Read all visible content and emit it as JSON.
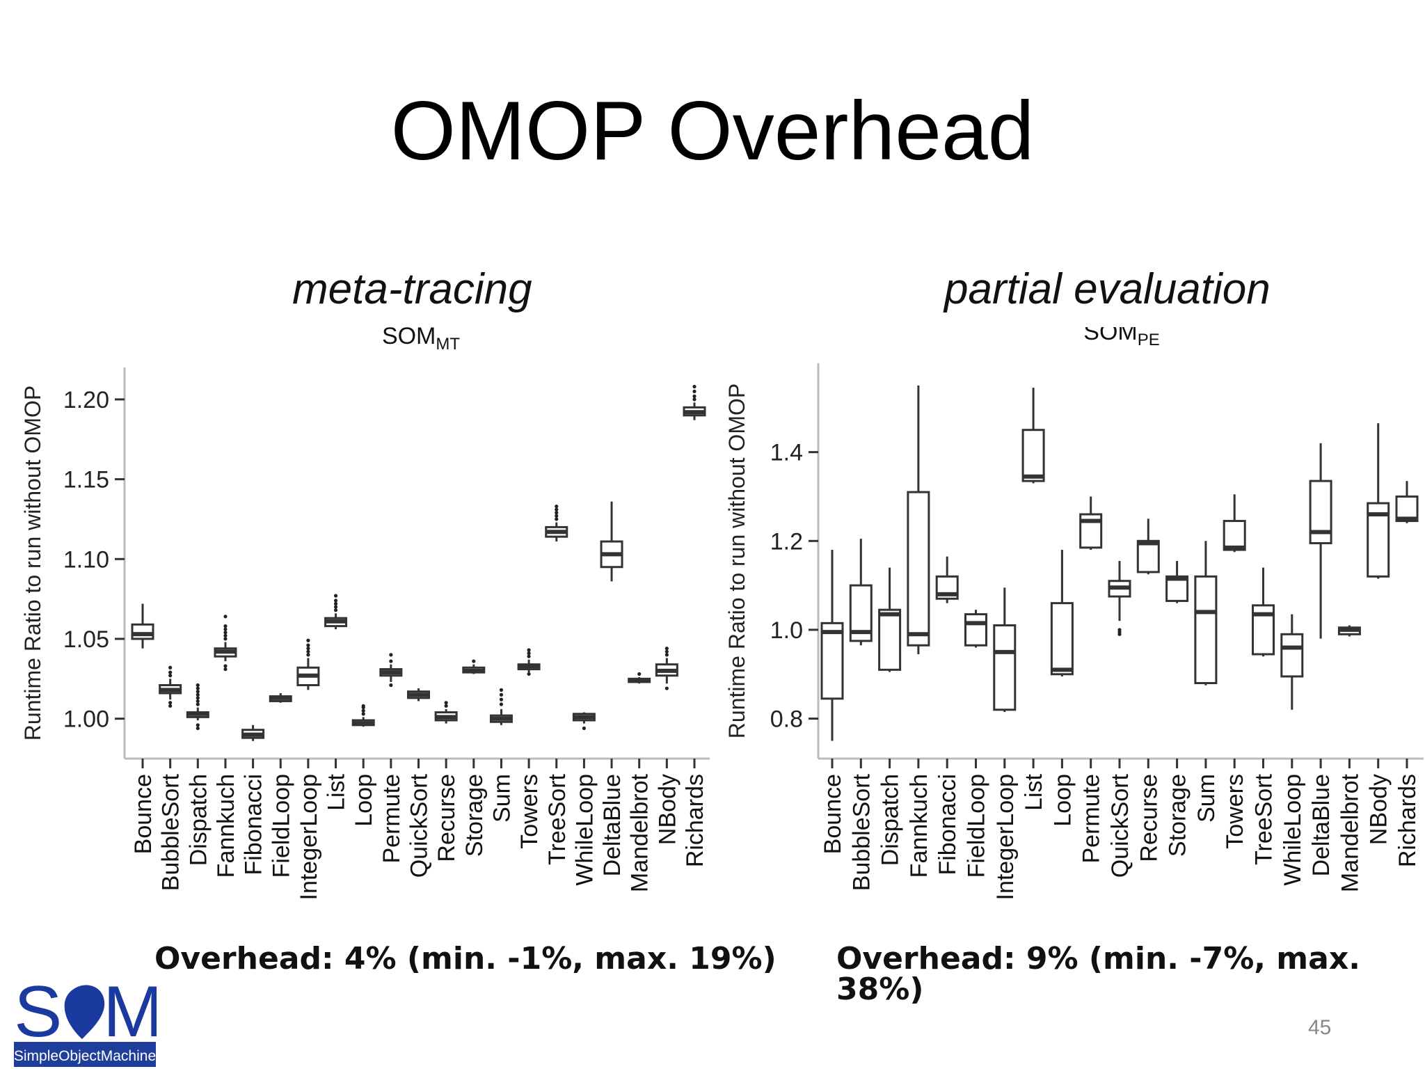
{
  "title": "OMOP Overhead",
  "page_number": "45",
  "logo": {
    "text": "SimpleObjectMachine",
    "wordmark": "SOM",
    "accent": "#1a3aa0",
    "band": "#1f3d9a"
  },
  "left": {
    "subtitle": "meta-tracing",
    "note": "Overhead: 4% (min. -1%, max. 19%)"
  },
  "right": {
    "subtitle": "partial evaluation",
    "note": "Overhead: 9% (min. -7%, max. 38%)"
  },
  "chart_data": [
    {
      "type": "box",
      "title": "SOM",
      "title_sub": "MT",
      "ylabel": "Runtime Ratio to run without OMOP",
      "ylim": [
        0.975,
        1.22
      ],
      "yticks": [
        1.0,
        1.05,
        1.1,
        1.15,
        1.2
      ],
      "categories": [
        "Bounce",
        "BubbleSort",
        "Dispatch",
        "Fannkuch",
        "Fibonacci",
        "FieldLoop",
        "IntegerLoop",
        "List",
        "Loop",
        "Permute",
        "QuickSort",
        "Recurse",
        "Storage",
        "Sum",
        "Towers",
        "TreeSort",
        "WhileLoop",
        "DeltaBlue",
        "Mandelbrot",
        "NBody",
        "Richards"
      ],
      "boxes": [
        {
          "q1": 1.05,
          "median": 1.053,
          "q3": 1.059,
          "wlo": 1.044,
          "whi": 1.072,
          "outliers": []
        },
        {
          "q1": 1.016,
          "median": 1.018,
          "q3": 1.021,
          "wlo": 1.012,
          "whi": 1.025,
          "outliers": [
            1.008,
            1.01,
            1.027,
            1.029,
            1.032
          ]
        },
        {
          "q1": 1.001,
          "median": 1.003,
          "q3": 1.004,
          "wlo": 0.999,
          "whi": 1.007,
          "outliers": [
            0.994,
            0.996,
            1.009,
            1.011,
            1.013,
            1.015,
            1.017,
            1.019,
            1.021
          ]
        },
        {
          "q1": 1.039,
          "median": 1.042,
          "q3": 1.044,
          "wlo": 1.036,
          "whi": 1.048,
          "outliers": [
            1.031,
            1.033,
            1.05,
            1.052,
            1.054,
            1.056,
            1.058,
            1.064
          ]
        },
        {
          "q1": 0.988,
          "median": 0.99,
          "q3": 0.993,
          "wlo": 0.986,
          "whi": 0.996,
          "outliers": []
        },
        {
          "q1": 1.011,
          "median": 1.013,
          "q3": 1.014,
          "wlo": 1.01,
          "whi": 1.016,
          "outliers": []
        },
        {
          "q1": 1.021,
          "median": 1.027,
          "q3": 1.032,
          "wlo": 1.018,
          "whi": 1.038,
          "outliers": [
            1.04,
            1.042,
            1.044,
            1.046,
            1.049
          ]
        },
        {
          "q1": 1.058,
          "median": 1.061,
          "q3": 1.063,
          "wlo": 1.056,
          "whi": 1.066,
          "outliers": [
            1.068,
            1.07,
            1.072,
            1.074,
            1.077
          ]
        },
        {
          "q1": 0.996,
          "median": 0.997,
          "q3": 0.999,
          "wlo": 0.995,
          "whi": 1.001,
          "outliers": [
            1.003,
            1.005,
            1.007,
            1.008
          ]
        },
        {
          "q1": 1.027,
          "median": 1.029,
          "q3": 1.031,
          "wlo": 1.023,
          "whi": 1.034,
          "outliers": [
            1.021,
            1.036,
            1.04
          ]
        },
        {
          "q1": 1.013,
          "median": 1.015,
          "q3": 1.017,
          "wlo": 1.011,
          "whi": 1.019,
          "outliers": []
        },
        {
          "q1": 0.999,
          "median": 1.001,
          "q3": 1.004,
          "wlo": 0.997,
          "whi": 1.006,
          "outliers": [
            1.008,
            1.01
          ]
        },
        {
          "q1": 1.029,
          "median": 1.03,
          "q3": 1.032,
          "wlo": 1.028,
          "whi": 1.034,
          "outliers": [
            1.036
          ]
        },
        {
          "q1": 0.998,
          "median": 1.0,
          "q3": 1.002,
          "wlo": 0.996,
          "whi": 1.006,
          "outliers": [
            1.009,
            1.012,
            1.015,
            1.018
          ]
        },
        {
          "q1": 1.031,
          "median": 1.033,
          "q3": 1.034,
          "wlo": 1.029,
          "whi": 1.037,
          "outliers": [
            1.028,
            1.039,
            1.041,
            1.043
          ]
        },
        {
          "q1": 1.114,
          "median": 1.117,
          "q3": 1.12,
          "wlo": 1.111,
          "whi": 1.123,
          "outliers": [
            1.125,
            1.127,
            1.129,
            1.131,
            1.133
          ]
        },
        {
          "q1": 0.999,
          "median": 1.001,
          "q3": 1.003,
          "wlo": 0.997,
          "whi": 1.004,
          "outliers": [
            0.994
          ]
        },
        {
          "q1": 1.095,
          "median": 1.103,
          "q3": 1.111,
          "wlo": 1.086,
          "whi": 1.136,
          "outliers": []
        },
        {
          "q1": 1.023,
          "median": 1.024,
          "q3": 1.025,
          "wlo": 1.022,
          "whi": 1.026,
          "outliers": [
            1.028
          ]
        },
        {
          "q1": 1.027,
          "median": 1.03,
          "q3": 1.034,
          "wlo": 1.022,
          "whi": 1.038,
          "outliers": [
            1.019,
            1.04,
            1.042,
            1.044
          ]
        },
        {
          "q1": 1.19,
          "median": 1.192,
          "q3": 1.195,
          "wlo": 1.187,
          "whi": 1.198,
          "outliers": [
            1.2,
            1.202,
            1.205,
            1.208
          ]
        }
      ]
    },
    {
      "type": "box",
      "title": "SOM",
      "title_sub": "PE",
      "ylabel": "Runtime Ratio to run without OMOP",
      "ylim": [
        0.71,
        1.6
      ],
      "yticks": [
        0.8,
        1.0,
        1.2,
        1.4
      ],
      "categories": [
        "Bounce",
        "BubbleSort",
        "Dispatch",
        "Fannkuch",
        "Fibonacci",
        "FieldLoop",
        "IntegerLoop",
        "List",
        "Loop",
        "Permute",
        "QuickSort",
        "Recurse",
        "Storage",
        "Sum",
        "Towers",
        "TreeSort",
        "WhileLoop",
        "DeltaBlue",
        "Mandelbrot",
        "NBody",
        "Richards"
      ],
      "boxes": [
        {
          "q1": 0.845,
          "median": 0.995,
          "q3": 1.015,
          "wlo": 0.75,
          "whi": 1.18,
          "outliers": []
        },
        {
          "q1": 0.975,
          "median": 0.995,
          "q3": 1.1,
          "wlo": 0.965,
          "whi": 1.205,
          "outliers": []
        },
        {
          "q1": 0.91,
          "median": 1.035,
          "q3": 1.045,
          "wlo": 0.905,
          "whi": 1.14,
          "outliers": []
        },
        {
          "q1": 0.965,
          "median": 0.99,
          "q3": 1.31,
          "wlo": 0.945,
          "whi": 1.55,
          "outliers": []
        },
        {
          "q1": 1.07,
          "median": 1.08,
          "q3": 1.12,
          "wlo": 1.06,
          "whi": 1.165,
          "outliers": []
        },
        {
          "q1": 0.965,
          "median": 1.015,
          "q3": 1.035,
          "wlo": 0.96,
          "whi": 1.045,
          "outliers": []
        },
        {
          "q1": 0.82,
          "median": 0.95,
          "q3": 1.01,
          "wlo": 0.815,
          "whi": 1.095,
          "outliers": []
        },
        {
          "q1": 1.335,
          "median": 1.345,
          "q3": 1.45,
          "wlo": 1.33,
          "whi": 1.545,
          "outliers": []
        },
        {
          "q1": 0.9,
          "median": 0.91,
          "q3": 1.06,
          "wlo": 0.895,
          "whi": 1.18,
          "outliers": []
        },
        {
          "q1": 1.185,
          "median": 1.245,
          "q3": 1.26,
          "wlo": 1.18,
          "whi": 1.3,
          "outliers": []
        },
        {
          "q1": 1.075,
          "median": 1.095,
          "q3": 1.11,
          "wlo": 1.02,
          "whi": 1.155,
          "outliers": [
            0.99,
            0.995,
            1.0
          ]
        },
        {
          "q1": 1.13,
          "median": 1.195,
          "q3": 1.2,
          "wlo": 1.125,
          "whi": 1.25,
          "outliers": []
        },
        {
          "q1": 1.065,
          "median": 1.115,
          "q3": 1.12,
          "wlo": 1.06,
          "whi": 1.155,
          "outliers": []
        },
        {
          "q1": 0.88,
          "median": 1.04,
          "q3": 1.12,
          "wlo": 0.875,
          "whi": 1.2,
          "outliers": []
        },
        {
          "q1": 1.18,
          "median": 1.185,
          "q3": 1.245,
          "wlo": 1.175,
          "whi": 1.305,
          "outliers": []
        },
        {
          "q1": 0.945,
          "median": 1.035,
          "q3": 1.055,
          "wlo": 0.94,
          "whi": 1.14,
          "outliers": []
        },
        {
          "q1": 0.895,
          "median": 0.96,
          "q3": 0.99,
          "wlo": 0.82,
          "whi": 1.035,
          "outliers": []
        },
        {
          "q1": 1.195,
          "median": 1.22,
          "q3": 1.335,
          "wlo": 0.98,
          "whi": 1.42,
          "outliers": []
        },
        {
          "q1": 0.99,
          "median": 1.0,
          "q3": 1.005,
          "wlo": 0.985,
          "whi": 1.01,
          "outliers": []
        },
        {
          "q1": 1.12,
          "median": 1.26,
          "q3": 1.285,
          "wlo": 1.115,
          "whi": 1.465,
          "outliers": []
        },
        {
          "q1": 1.245,
          "median": 1.25,
          "q3": 1.3,
          "wlo": 1.24,
          "whi": 1.335,
          "outliers": []
        }
      ]
    }
  ]
}
